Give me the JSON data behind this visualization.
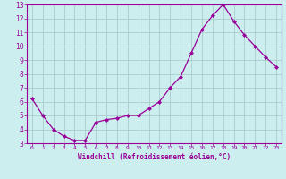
{
  "hours": [
    0,
    1,
    2,
    3,
    4,
    5,
    6,
    7,
    8,
    9,
    10,
    11,
    12,
    13,
    14,
    15,
    16,
    17,
    18,
    19,
    20,
    21,
    22,
    23
  ],
  "values": [
    6.2,
    5.0,
    4.0,
    3.5,
    3.2,
    3.2,
    4.5,
    4.7,
    4.8,
    5.0,
    5.0,
    5.5,
    6.0,
    7.0,
    7.8,
    9.5,
    11.2,
    12.2,
    13.0,
    11.8,
    10.8,
    10.0,
    9.2,
    8.5
  ],
  "line_color": "#990099",
  "marker": "D",
  "marker_size": 2.0,
  "bg_color": "#cceeee",
  "grid_color": "#aacccc",
  "xlabel": "Windchill (Refroidissement éolien,°C)",
  "xlabel_color": "#990099",
  "tick_color": "#990099",
  "ylim": [
    3,
    13
  ],
  "xlim": [
    -0.5,
    23.5
  ],
  "yticks": [
    3,
    4,
    5,
    6,
    7,
    8,
    9,
    10,
    11,
    12,
    13
  ],
  "xticks": [
    0,
    1,
    2,
    3,
    4,
    5,
    6,
    7,
    8,
    9,
    10,
    11,
    12,
    13,
    14,
    15,
    16,
    17,
    18,
    19,
    20,
    21,
    22,
    23
  ],
  "spine_color": "#990099",
  "fig_bg": "#cceeee"
}
